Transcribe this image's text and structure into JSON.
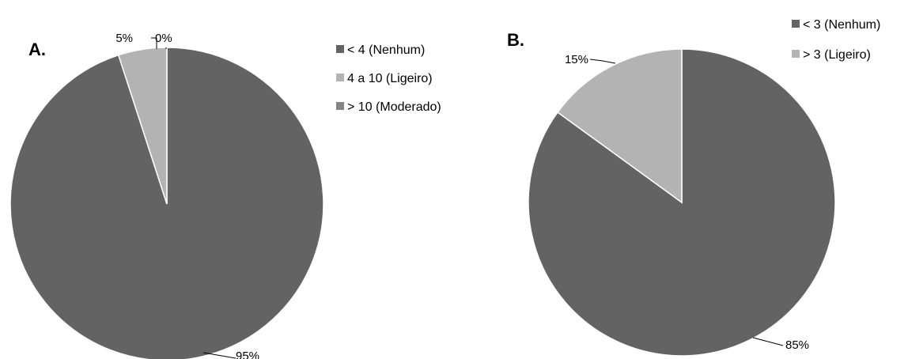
{
  "chart_data": [
    {
      "type": "pie",
      "panel_label": "A.",
      "categories": [
        "< 4 (Nenhum)",
        "4 a 10 (Ligeiro)",
        "> 10 (Moderado)"
      ],
      "values": [
        95,
        5,
        0
      ],
      "data_labels": [
        "95%",
        "5%",
        "0%"
      ],
      "colors": [
        "#636363",
        "#b3b3b3",
        "#858585"
      ],
      "legend_position": "right"
    },
    {
      "type": "pie",
      "panel_label": "B.",
      "categories": [
        "< 3 (Nenhum)",
        "> 3 (Ligeiro)"
      ],
      "values": [
        85,
        15
      ],
      "data_labels": [
        "85%",
        "15%"
      ],
      "colors": [
        "#636363",
        "#b3b3b3"
      ],
      "legend_position": "top-right"
    }
  ]
}
